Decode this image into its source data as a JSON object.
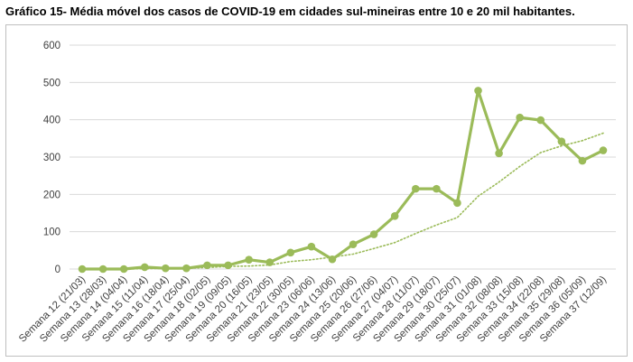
{
  "title": "Gráfico 15- Média móvel dos casos de COVID-19 em cidades sul-mineiras entre 10 e 20 mil habitantes.",
  "chart_data": {
    "type": "line",
    "title": "Gráfico 15- Média móvel dos casos de COVID-19 em cidades sul-mineiras entre 10 e 20 mil habitantes.",
    "xlabel": "",
    "ylabel": "",
    "ylim": [
      0,
      600
    ],
    "yticks": [
      0,
      100,
      200,
      300,
      400,
      500,
      600
    ],
    "grid": true,
    "legend": "none",
    "categories": [
      "Semana 12 (21/03)",
      "Semana 13 (28/03)",
      "Semana 14 (04/04)",
      "Semana 15 (11/04)",
      "Semana 16 (18/04)",
      "Semana 17 (25/04)",
      "Semana 18 (02/05)",
      "Semana 19 (09/05)",
      "Semana 20 (16/05)",
      "Semana 21 (23/05)",
      "Semana 22 (30/05)",
      "Semana 23 (06/06)",
      "Semana 24 (13/06)",
      "Semana 25 (20/06)",
      "Semana 26 (27/06)",
      "Semana 27 (04/07)",
      "Semana 28 (11/07)",
      "Semana 29 (18/07)",
      "Semana 30 (25/07)",
      "Semana 31 (01/08)",
      "Semana 32 (08/08)",
      "Semana 33 (15/08)",
      "Semana 34 (22/08)",
      "Semana 35 (29/08)",
      "Semana 36 (05/09)",
      "Semana 37 (12/09)"
    ],
    "series": [
      {
        "style": "solid-markers",
        "color": "#9bbb59",
        "values": [
          0,
          0,
          0,
          5,
          2,
          2,
          10,
          10,
          25,
          18,
          44,
          60,
          26,
          66,
          93,
          142,
          215,
          215,
          177,
          478,
          310,
          406,
          399,
          342,
          290,
          318
        ]
      },
      {
        "style": "dotted-trend",
        "color": "#9bbb59",
        "values": [
          0,
          0,
          0,
          1,
          2,
          2,
          4,
          7,
          8,
          11,
          20,
          25,
          32,
          40,
          55,
          71,
          95,
          118,
          138,
          195,
          233,
          275,
          312,
          330,
          344,
          364
        ]
      }
    ]
  }
}
